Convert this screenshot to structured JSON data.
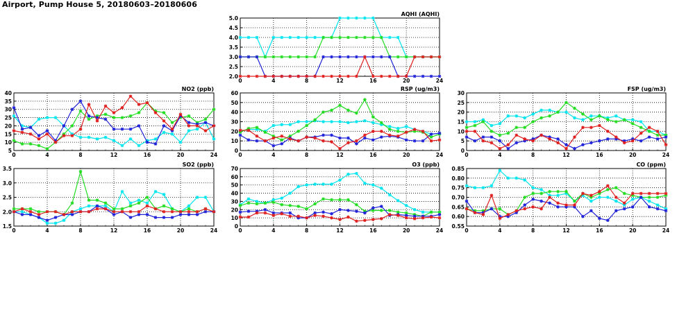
{
  "page": {
    "title": "Airport, Pump House 5, 20180603–20180606"
  },
  "colors": {
    "cyan": "#00e5ee",
    "green": "#22dd22",
    "blue": "#1f22d9",
    "red": "#e01e1e"
  },
  "chart_data": [
    {
      "id": "aqhi",
      "type": "line",
      "title": "AQHI (AQHI)",
      "x_ticks": [
        "0",
        "4",
        "8",
        "12",
        "16",
        "20",
        "24"
      ],
      "y_ticks": [
        "2.0",
        "2.5",
        "3.0",
        "3.5",
        "4.0",
        "4.5",
        "5.0"
      ],
      "xlim": [
        0,
        24
      ],
      "ylim": [
        2.0,
        5.0
      ],
      "series": [
        {
          "name": "cyan",
          "color": "#00e5ee",
          "values": [
            4,
            4,
            4,
            3,
            4,
            4,
            4,
            4,
            4,
            4,
            4,
            4,
            5,
            5,
            5,
            5,
            5,
            4,
            4,
            4,
            3,
            3,
            3,
            3,
            3
          ]
        },
        {
          "name": "green",
          "color": "#22dd22",
          "values": [
            3,
            3,
            3,
            3,
            3,
            3,
            3,
            3,
            3,
            3,
            4,
            4,
            4,
            4,
            4,
            4,
            4,
            4,
            3,
            3,
            3,
            3,
            3,
            3,
            3
          ]
        },
        {
          "name": "blue",
          "color": "#1f22d9",
          "values": [
            3,
            3,
            3,
            2,
            2,
            2,
            2,
            2,
            2,
            2,
            3,
            3,
            3,
            3,
            3,
            3,
            3,
            3,
            3,
            2,
            2,
            2,
            2,
            2,
            2
          ]
        },
        {
          "name": "red",
          "color": "#e01e1e",
          "values": [
            2,
            2,
            2,
            2,
            2,
            2,
            2,
            2,
            2,
            2,
            2,
            2,
            2,
            2,
            2,
            3,
            2,
            2,
            2,
            2,
            2,
            3,
            3,
            3,
            3
          ]
        }
      ]
    },
    {
      "id": "no2",
      "type": "line",
      "title": "NO2 (ppb)",
      "x_ticks": [
        "0",
        "4",
        "8",
        "12",
        "16",
        "20",
        "24"
      ],
      "y_ticks": [
        "5",
        "10",
        "15",
        "20",
        "25",
        "30",
        "35",
        "40"
      ],
      "xlim": [
        0,
        24
      ],
      "ylim": [
        5,
        40
      ],
      "series": [
        {
          "name": "cyan",
          "color": "#00e5ee",
          "values": [
            26,
            20,
            19,
            24,
            25,
            25,
            20,
            15,
            13,
            13,
            12,
            13,
            11,
            8,
            12,
            8,
            11,
            12,
            16,
            15,
            10,
            17,
            18,
            22,
            12
          ]
        },
        {
          "name": "green",
          "color": "#22dd22",
          "values": [
            11,
            9,
            9,
            8,
            6,
            10,
            15,
            20,
            29,
            24,
            26,
            27,
            25,
            25,
            26,
            28,
            34,
            29,
            28,
            22,
            25,
            26,
            22,
            24,
            30
          ]
        },
        {
          "name": "blue",
          "color": "#1f22d9",
          "values": [
            31,
            18,
            19,
            14,
            17,
            11,
            20,
            30,
            35,
            26,
            25,
            24,
            18,
            18,
            18,
            20,
            10,
            9,
            20,
            17,
            26,
            22,
            21,
            22,
            20
          ]
        },
        {
          "name": "red",
          "color": "#e01e1e",
          "values": [
            17,
            16,
            15,
            12,
            15,
            10,
            14,
            14,
            18,
            33,
            23,
            32,
            28,
            31,
            38,
            33,
            34,
            28,
            23,
            18,
            27,
            20,
            20,
            17,
            20
          ]
        }
      ]
    },
    {
      "id": "rsp",
      "type": "line",
      "title": "RSP (ug/m3)",
      "x_ticks": [
        "0",
        "4",
        "8",
        "12",
        "16",
        "20",
        "24"
      ],
      "y_ticks": [
        "0",
        "10",
        "20",
        "30",
        "40",
        "50",
        "60"
      ],
      "xlim": [
        0,
        24
      ],
      "ylim": [
        0,
        60
      ],
      "series": [
        {
          "name": "cyan",
          "color": "#00e5ee",
          "values": [
            20,
            22,
            22,
            20,
            26,
            27,
            27,
            30,
            30,
            31,
            30,
            30,
            30,
            29,
            30,
            31,
            29,
            27,
            25,
            23,
            25,
            22,
            20,
            17,
            18
          ]
        },
        {
          "name": "green",
          "color": "#22dd22",
          "values": [
            19,
            23,
            24,
            19,
            15,
            11,
            15,
            20,
            26,
            32,
            40,
            42,
            47,
            42,
            39,
            53,
            35,
            29,
            22,
            20,
            19,
            20,
            19,
            14,
            17
          ]
        },
        {
          "name": "blue",
          "color": "#1f22d9",
          "values": [
            16,
            11,
            10,
            10,
            5,
            7,
            13,
            10,
            14,
            14,
            16,
            16,
            13,
            13,
            7,
            13,
            11,
            14,
            15,
            14,
            11,
            10,
            10,
            17,
            18
          ]
        },
        {
          "name": "red",
          "color": "#e01e1e",
          "values": [
            21,
            21,
            15,
            10,
            13,
            15,
            12,
            10,
            14,
            13,
            10,
            9,
            2,
            8,
            10,
            16,
            20,
            20,
            16,
            15,
            19,
            22,
            20,
            10,
            11
          ]
        }
      ]
    },
    {
      "id": "fsp",
      "type": "line",
      "title": "FSP (ug/m3)",
      "x_ticks": [
        "0",
        "4",
        "8",
        "12",
        "16",
        "20",
        "24"
      ],
      "y_ticks": [
        "0",
        "5",
        "10",
        "15",
        "20",
        "25",
        "30"
      ],
      "xlim": [
        0,
        24
      ],
      "ylim": [
        0,
        30
      ],
      "series": [
        {
          "name": "cyan",
          "color": "#00e5ee",
          "values": [
            15,
            15,
            16,
            13,
            14,
            18,
            18,
            17,
            19,
            21,
            21,
            20,
            20,
            17,
            16,
            18,
            18,
            17,
            18,
            16,
            16,
            15,
            10,
            10,
            8
          ]
        },
        {
          "name": "green",
          "color": "#22dd22",
          "values": [
            12,
            13,
            15,
            10,
            8,
            9,
            12,
            12,
            15,
            17,
            18,
            20,
            25,
            22,
            19,
            16,
            18,
            16,
            15,
            16,
            14,
            12,
            10,
            8,
            8
          ]
        },
        {
          "name": "blue",
          "color": "#1f22d9",
          "values": [
            7,
            5,
            7,
            7,
            5,
            1,
            4,
            5,
            6,
            8,
            7,
            6,
            3,
            1,
            3,
            4,
            5,
            6,
            6,
            5,
            6,
            5,
            7,
            6,
            7
          ]
        },
        {
          "name": "red",
          "color": "#e01e1e",
          "values": [
            10,
            10,
            5,
            4,
            1,
            3,
            8,
            6,
            5,
            8,
            6,
            4,
            1,
            7,
            12,
            12,
            13,
            10,
            7,
            4,
            5,
            9,
            12,
            10,
            3
          ]
        }
      ]
    },
    {
      "id": "so2",
      "type": "line",
      "title": "SO2 (ppb)",
      "x_ticks": [
        "0",
        "4",
        "8",
        "12",
        "16",
        "20",
        "24"
      ],
      "y_ticks": [
        "1.5",
        "2.0",
        "2.5",
        "3.0",
        "3.5"
      ],
      "xlim": [
        0,
        24
      ],
      "ylim": [
        1.5,
        3.5
      ],
      "series": [
        {
          "name": "cyan",
          "color": "#00e5ee",
          "values": [
            2.0,
            2.0,
            1.9,
            1.8,
            1.6,
            1.6,
            1.7,
            2.0,
            2.1,
            2.2,
            2.2,
            2.2,
            2.0,
            2.7,
            2.3,
            2.4,
            2.3,
            2.7,
            2.6,
            2.1,
            2.0,
            2.2,
            2.5,
            2.5,
            2.0
          ]
        },
        {
          "name": "green",
          "color": "#22dd22",
          "values": [
            2.1,
            2.1,
            2.1,
            2.0,
            2.0,
            2.0,
            1.9,
            2.3,
            3.4,
            2.4,
            2.4,
            2.3,
            2.1,
            2.1,
            2.2,
            2.3,
            2.5,
            2.1,
            2.2,
            2.1,
            2.0,
            2.1,
            2.0,
            2.1,
            2.0
          ]
        },
        {
          "name": "blue",
          "color": "#1f22d9",
          "values": [
            2.0,
            1.9,
            1.9,
            1.8,
            1.7,
            1.8,
            1.9,
            1.9,
            2.0,
            2.0,
            2.2,
            2.1,
            1.9,
            2.0,
            1.8,
            1.9,
            1.9,
            1.8,
            1.8,
            1.8,
            1.9,
            1.9,
            1.9,
            2.0,
            2.0
          ]
        },
        {
          "name": "red",
          "color": "#e01e1e",
          "values": [
            2.0,
            2.1,
            2.0,
            1.9,
            2.0,
            2.0,
            1.9,
            2.0,
            2.0,
            2.0,
            2.1,
            2.1,
            2.0,
            2.0,
            2.0,
            2.0,
            2.2,
            2.1,
            2.0,
            2.0,
            2.0,
            2.0,
            2.0,
            2.1,
            2.0
          ]
        }
      ]
    },
    {
      "id": "o3",
      "type": "line",
      "title": "O3 (ppb)",
      "x_ticks": [
        "0",
        "4",
        "8",
        "12",
        "16",
        "20",
        "24"
      ],
      "y_ticks": [
        "0",
        "10",
        "20",
        "30",
        "40",
        "50",
        "60",
        "70"
      ],
      "xlim": [
        0,
        24
      ],
      "ylim": [
        0,
        70
      ],
      "series": [
        {
          "name": "cyan",
          "color": "#00e5ee",
          "values": [
            26,
            33,
            30,
            28,
            32,
            34,
            40,
            48,
            50,
            51,
            51,
            51,
            56,
            63,
            64,
            52,
            50,
            46,
            38,
            31,
            25,
            20,
            17,
            17,
            17
          ]
        },
        {
          "name": "green",
          "color": "#22dd22",
          "values": [
            25,
            28,
            27,
            28,
            29,
            26,
            25,
            24,
            21,
            27,
            33,
            32,
            32,
            32,
            26,
            18,
            19,
            19,
            19,
            17,
            16,
            14,
            12,
            17,
            17
          ]
        },
        {
          "name": "blue",
          "color": "#1f22d9",
          "values": [
            17,
            18,
            18,
            20,
            16,
            16,
            16,
            10,
            10,
            16,
            17,
            15,
            20,
            19,
            18,
            16,
            22,
            24,
            13,
            14,
            13,
            12,
            12,
            12,
            14
          ]
        },
        {
          "name": "red",
          "color": "#e01e1e",
          "values": [
            11,
            11,
            16,
            16,
            13,
            15,
            12,
            12,
            10,
            13,
            12,
            10,
            8,
            11,
            6,
            7,
            8,
            9,
            14,
            13,
            10,
            9,
            10,
            11,
            10
          ]
        }
      ]
    },
    {
      "id": "co",
      "type": "line",
      "title": "CO (ppm)",
      "x_ticks": [
        "0",
        "4",
        "8",
        "12",
        "16",
        "20",
        "24"
      ],
      "y_ticks": [
        "0.55",
        "0.60",
        "0.65",
        "0.70",
        "0.75",
        "0.80",
        "0.85"
      ],
      "xlim": [
        0,
        24
      ],
      "ylim": [
        0.55,
        0.85
      ],
      "series": [
        {
          "name": "cyan",
          "color": "#00e5ee",
          "values": [
            0.76,
            0.75,
            0.75,
            0.76,
            0.84,
            0.8,
            0.8,
            0.79,
            0.75,
            0.74,
            0.71,
            0.71,
            0.72,
            0.68,
            0.71,
            0.68,
            0.7,
            0.7,
            0.68,
            0.66,
            0.69,
            0.7,
            0.68,
            0.66,
            0.64
          ]
        },
        {
          "name": "green",
          "color": "#22dd22",
          "values": [
            0.64,
            0.63,
            0.63,
            0.64,
            0.64,
            0.61,
            0.63,
            0.7,
            0.72,
            0.72,
            0.73,
            0.73,
            0.73,
            0.68,
            0.72,
            0.7,
            0.72,
            0.74,
            0.75,
            0.72,
            0.71,
            0.7,
            0.7,
            0.7,
            0.71
          ]
        },
        {
          "name": "blue",
          "color": "#1f22d9",
          "values": [
            0.68,
            0.62,
            0.62,
            0.64,
            0.6,
            0.6,
            0.62,
            0.66,
            0.69,
            0.68,
            0.67,
            0.65,
            0.65,
            0.65,
            0.6,
            0.63,
            0.59,
            0.58,
            0.63,
            0.64,
            0.65,
            0.7,
            0.65,
            0.64,
            0.63
          ]
        },
        {
          "name": "red",
          "color": "#e01e1e",
          "values": [
            0.64,
            0.62,
            0.61,
            0.71,
            0.59,
            0.61,
            0.63,
            0.64,
            0.65,
            0.64,
            0.7,
            0.67,
            0.66,
            0.66,
            0.72,
            0.71,
            0.73,
            0.76,
            0.7,
            0.67,
            0.72,
            0.72,
            0.72,
            0.72,
            0.72
          ]
        }
      ]
    }
  ]
}
